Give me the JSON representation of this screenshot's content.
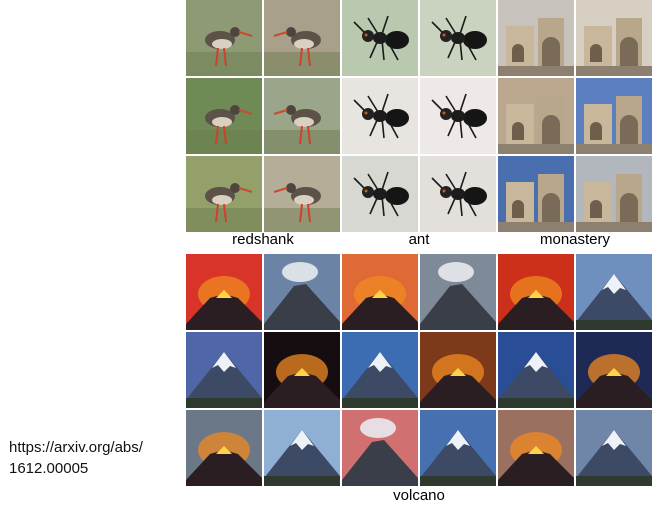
{
  "citation": {
    "line1": "https://arxiv.org/abs/",
    "line2": "1612.00005"
  },
  "captions": {
    "redshank": "redshank",
    "ant": "ant",
    "monastery": "monastery",
    "volcano": "volcano"
  },
  "top_grid": [
    [
      "bird",
      "bird",
      "ant",
      "ant",
      "monastery",
      "monastery"
    ],
    [
      "bird",
      "bird",
      "ant",
      "ant",
      "monastery",
      "monastery"
    ],
    [
      "bird",
      "bird",
      "ant",
      "ant",
      "monastery",
      "monastery"
    ]
  ],
  "bottom_grid": [
    [
      "volcano-red",
      "volcano-cloud",
      "volcano-red",
      "volcano-cloud",
      "volcano-red",
      "volcano-snow"
    ],
    [
      "volcano-snow",
      "volcano-red",
      "volcano-snow",
      "volcano-red",
      "volcano-snow",
      "volcano-red"
    ],
    [
      "volcano-red",
      "volcano-snow",
      "volcano-cloud",
      "volcano-snow",
      "volcano-red",
      "volcano-snow"
    ]
  ],
  "colors": {
    "bird_bg": [
      "#8d9a74",
      "#a8a08a",
      "#6f8a55",
      "#9aa58a",
      "#93a06a",
      "#b4ae98"
    ],
    "ant_bg": [
      "#d8d8d2",
      "#e3e0dc",
      "#b8c9b0",
      "#c9d3c0",
      "#e8e4e0",
      "#eee8e6"
    ],
    "monastery_bg": [
      "#bba78d",
      "#5b7fbf",
      "#4a6fae",
      "#b2b6bd",
      "#c7c2bb",
      "#d6cfc2"
    ],
    "volcano_sky": [
      "#d8342a",
      "#6b84a6",
      "#e06a36",
      "#7f8a99",
      "#cc2f1a",
      "#6f8fbf",
      "#4f66a8",
      "#150d10",
      "#3c6cb2",
      "#7d3a1a",
      "#2a4e96",
      "#1e2a55",
      "#6a7888",
      "#8fb0d4",
      "#d07070",
      "#4670b0",
      "#9a7060",
      "#6f86a8"
    ]
  }
}
